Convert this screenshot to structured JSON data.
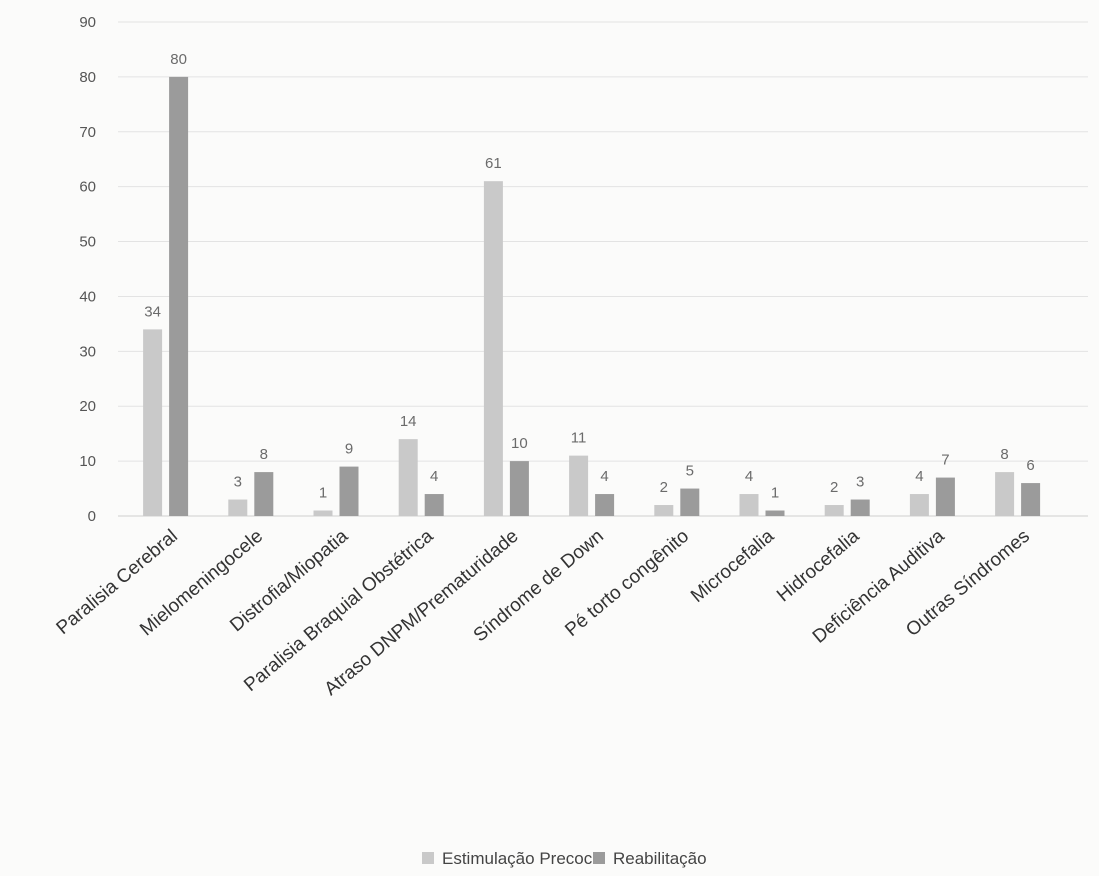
{
  "chart_data": {
    "type": "bar",
    "title": "",
    "xlabel": "",
    "ylabel": "",
    "ylim": [
      0,
      90
    ],
    "yticks": [
      0,
      10,
      20,
      30,
      40,
      50,
      60,
      70,
      80,
      90
    ],
    "grid": true,
    "legend_position": "bottom",
    "categories": [
      "Paralisia Cerebral",
      "Mielomeningocele",
      "Distrofia/Miopatia",
      "Paralisia Braquial Obstétrica",
      "Atraso DNPM/Prematuridade",
      "Síndrome de Down",
      "Pé torto congênito",
      "Microcefalia",
      "Hidrocefalia",
      "Deficiência Auditiva",
      "Outras Síndromes"
    ],
    "series": [
      {
        "name": "Estimulação Precoce",
        "color": "#c9c9c9",
        "values": [
          34,
          3,
          1,
          14,
          61,
          11,
          2,
          4,
          2,
          4,
          8
        ]
      },
      {
        "name": "Reabilitação",
        "color": "#9b9b9b",
        "values": [
          80,
          8,
          9,
          4,
          10,
          4,
          5,
          1,
          3,
          7,
          6
        ]
      }
    ]
  },
  "colors": {
    "gridline": "#e3e3e3",
    "axis": "#cfcfcf",
    "background": "#fbfbfa"
  }
}
